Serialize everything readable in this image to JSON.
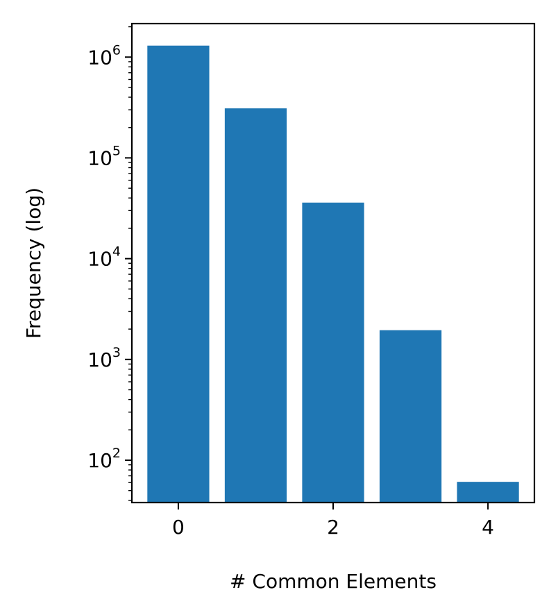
{
  "chart_data": {
    "type": "bar",
    "title": "",
    "xlabel": "# Common Elements",
    "ylabel": "Frequency (log)",
    "yscale": "log",
    "x": [
      0,
      1,
      2,
      3,
      4
    ],
    "values": [
      1300000,
      310000,
      36000,
      1950,
      61
    ],
    "xlim": [
      -0.6,
      4.6
    ],
    "ylim": [
      38,
      2150000
    ],
    "x_ticks": [
      0,
      2,
      4
    ],
    "x_tick_labels": [
      "0",
      "2",
      "4"
    ],
    "y_ticks": [
      100,
      1000,
      10000,
      100000,
      1000000
    ],
    "y_tick_labels": [
      {
        "base": "10",
        "exp": "2"
      },
      {
        "base": "10",
        "exp": "3"
      },
      {
        "base": "10",
        "exp": "4"
      },
      {
        "base": "10",
        "exp": "5"
      },
      {
        "base": "10",
        "exp": "6"
      }
    ],
    "bar_color": "#1f77b4",
    "grid": false,
    "legend": "none"
  }
}
